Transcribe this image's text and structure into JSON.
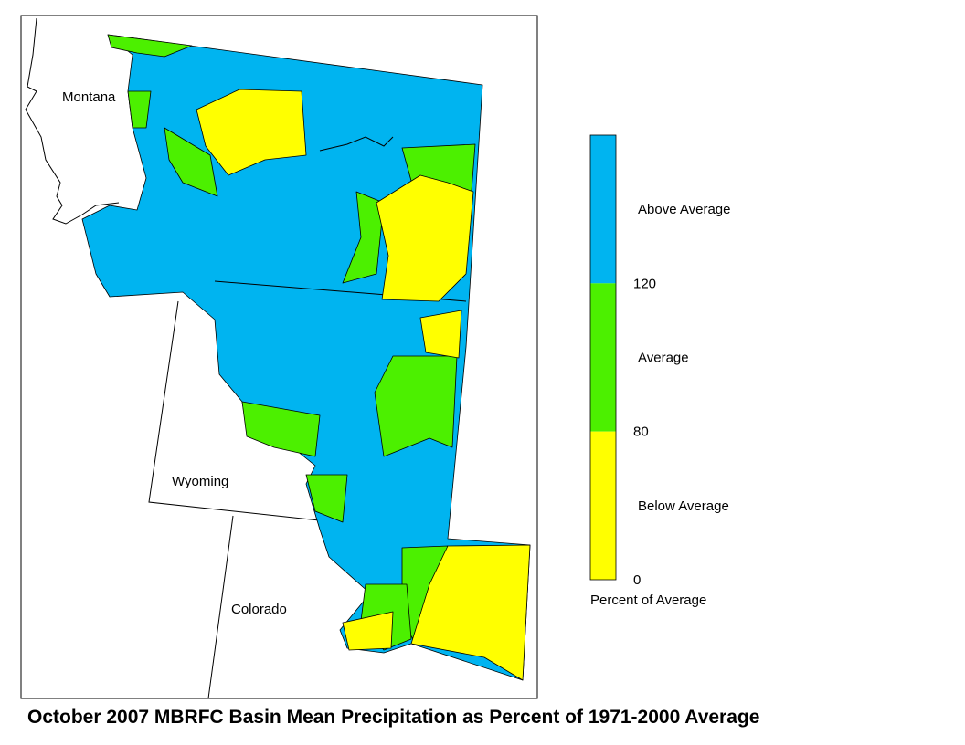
{
  "map": {
    "title": "October 2007 MBRFC Basin Mean Precipitation as Percent of 1971-2000 Average",
    "labels": [
      "Montana",
      "Wyoming",
      "Colorado"
    ],
    "legend": {
      "title": "Percent of Average",
      "classes": [
        {
          "label": "Above Average",
          "color": "#00b4f0"
        },
        {
          "label": "Average",
          "color": "#4cf000"
        },
        {
          "label": "Below Average",
          "color": "#ffff00"
        }
      ],
      "ticks": [
        120,
        80,
        0
      ]
    }
  }
}
